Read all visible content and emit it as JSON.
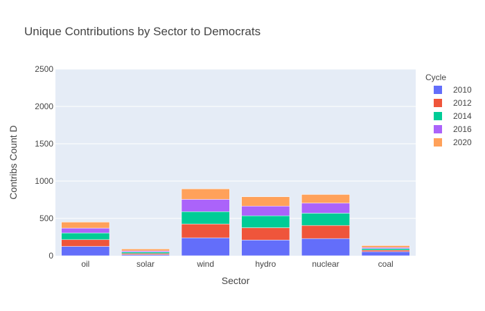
{
  "chart_data": {
    "type": "bar",
    "barmode": "stack",
    "title": "Unique Contributions by Sector to Democrats",
    "xlabel": "Sector",
    "ylabel": "Contribs Count D",
    "ylim": [
      0,
      2500
    ],
    "yticks": [
      0,
      500,
      1000,
      1500,
      2000,
      2500
    ],
    "y_tick_labels": [
      "0",
      "500",
      "1000",
      "1500",
      "2000",
      "2500"
    ],
    "grid": true,
    "legend_title": "Cycle",
    "legend_position": "right",
    "categories": [
      "oil",
      "solar",
      "wind",
      "hydro",
      "nuclear",
      "coal"
    ],
    "series": [
      {
        "name": "2010",
        "color": "#636efa",
        "values": [
          125,
          15,
          240,
          210,
          230,
          55
        ]
      },
      {
        "name": "2012",
        "color": "#EF553B",
        "values": [
          90,
          15,
          185,
          165,
          175,
          20
        ]
      },
      {
        "name": "2014",
        "color": "#00cc96",
        "values": [
          90,
          20,
          165,
          160,
          165,
          20
        ]
      },
      {
        "name": "2016",
        "color": "#ab63fa",
        "values": [
          65,
          15,
          165,
          130,
          135,
          15
        ]
      },
      {
        "name": "2020",
        "color": "#FFA15A",
        "values": [
          80,
          25,
          140,
          125,
          115,
          25
        ]
      }
    ]
  },
  "colors": {
    "plot_background": "#e5ecf6",
    "grid": "#ffffff"
  }
}
